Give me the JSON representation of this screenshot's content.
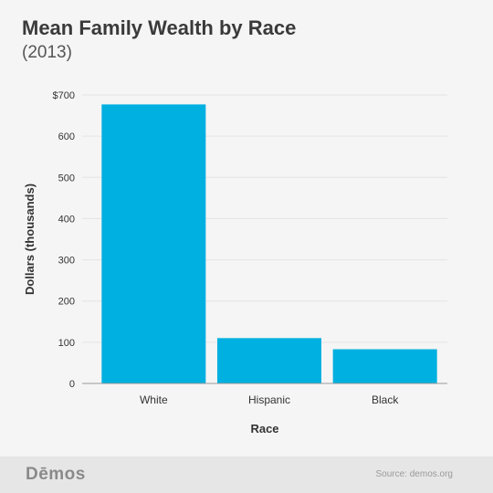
{
  "header": {
    "title": "Mean Family Wealth by Race",
    "subtitle": "(2013)"
  },
  "footer": {
    "logo": "Dēmos",
    "source": "Source: demos.org"
  },
  "colors": {
    "bar": "#00b0e0",
    "grid": "#e3e3e3",
    "axis": "#999999",
    "text": "#333333"
  },
  "chart_data": {
    "type": "bar",
    "title": "Mean Family Wealth by Race",
    "subtitle": "(2013)",
    "xlabel": "Race",
    "ylabel": "Dollars (thousands)",
    "categories": [
      "White",
      "Hispanic",
      "Black"
    ],
    "values": [
      677,
      110,
      83
    ],
    "ylim": [
      0,
      700
    ],
    "yticks": [
      0,
      100,
      200,
      300,
      400,
      500,
      600,
      700
    ],
    "ytick_labels": [
      "0",
      "100",
      "200",
      "300",
      "400",
      "500",
      "600",
      "$700"
    ],
    "grid": true,
    "legend": "none"
  }
}
